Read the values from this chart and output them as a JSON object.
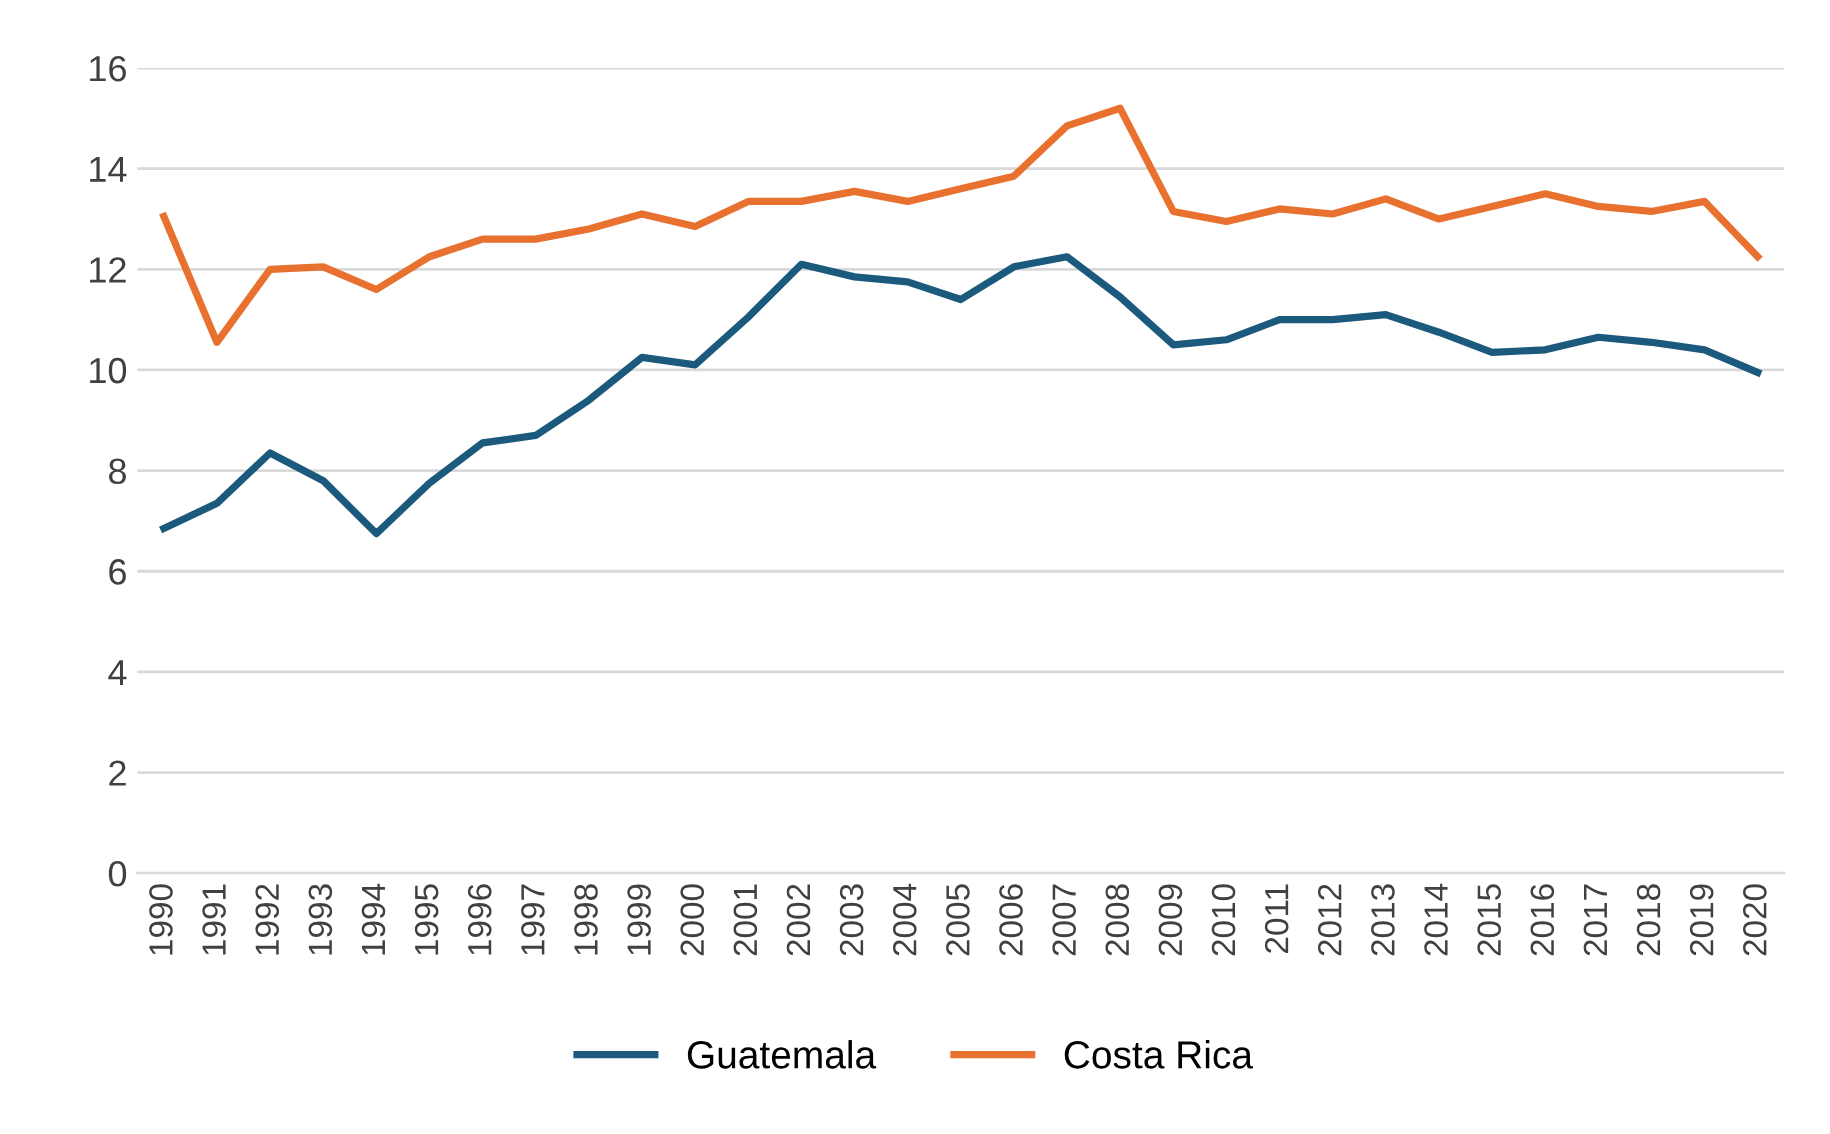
{
  "chart_data": {
    "type": "line",
    "categories": [
      "1990",
      "1991",
      "1992",
      "1993",
      "1994",
      "1995",
      "1996",
      "1997",
      "1998",
      "1999",
      "2000",
      "2001",
      "2002",
      "2003",
      "2004",
      "2005",
      "2006",
      "2007",
      "2008",
      "2009",
      "2010",
      "2011",
      "2012",
      "2013",
      "2014",
      "2015",
      "2016",
      "2017",
      "2018",
      "2019",
      "2020"
    ],
    "series": [
      {
        "name": "Guatemala",
        "color": "#1b5a7c",
        "values": [
          6.85,
          7.35,
          8.35,
          7.8,
          6.75,
          7.75,
          8.55,
          8.7,
          9.4,
          10.25,
          10.1,
          11.05,
          12.1,
          11.85,
          11.75,
          11.4,
          12.05,
          12.25,
          11.45,
          10.5,
          10.6,
          11.0,
          11.0,
          11.1,
          10.75,
          10.35,
          10.4,
          10.65,
          10.55,
          10.4,
          9.95
        ]
      },
      {
        "name": "Costa Rica",
        "color": "#e9712f",
        "values": [
          13.05,
          10.55,
          12.0,
          12.05,
          11.6,
          12.25,
          12.6,
          12.6,
          12.8,
          13.1,
          12.85,
          13.35,
          13.35,
          13.55,
          13.35,
          13.6,
          13.85,
          14.85,
          15.2,
          13.15,
          12.95,
          13.2,
          13.1,
          13.4,
          13.0,
          13.25,
          13.5,
          13.25,
          13.15,
          13.35,
          12.25
        ]
      }
    ],
    "ylim": [
      0,
      16
    ],
    "yticks": [
      0,
      2,
      4,
      6,
      8,
      10,
      12,
      14,
      16
    ],
    "grid": "y",
    "legend": "bottom",
    "marker": "none",
    "line_style": "solid"
  }
}
